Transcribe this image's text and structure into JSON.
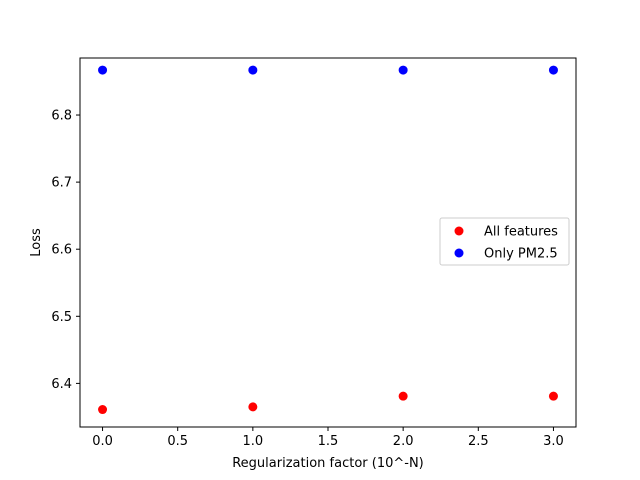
{
  "chart_data": {
    "type": "scatter",
    "title": "",
    "xlabel": "Regularization factor (10^-N)",
    "ylabel": "Loss",
    "x": [
      0,
      1,
      2,
      3
    ],
    "xlim": [
      -0.15,
      3.15
    ],
    "ylim": [
      6.335,
      6.885
    ],
    "xticks": [
      "0.0",
      "0.5",
      "1.0",
      "1.5",
      "2.0",
      "2.5",
      "3.0"
    ],
    "yticks": [
      "6.4",
      "6.5",
      "6.6",
      "6.7",
      "6.8"
    ],
    "grid": false,
    "legend_position": "center-right",
    "series": [
      {
        "name": "All features",
        "color": "#ff0000",
        "values": [
          6.361,
          6.365,
          6.381,
          6.381
        ]
      },
      {
        "name": "Only PM2.5",
        "color": "#0000ff",
        "values": [
          6.867,
          6.867,
          6.867,
          6.867
        ]
      }
    ]
  }
}
